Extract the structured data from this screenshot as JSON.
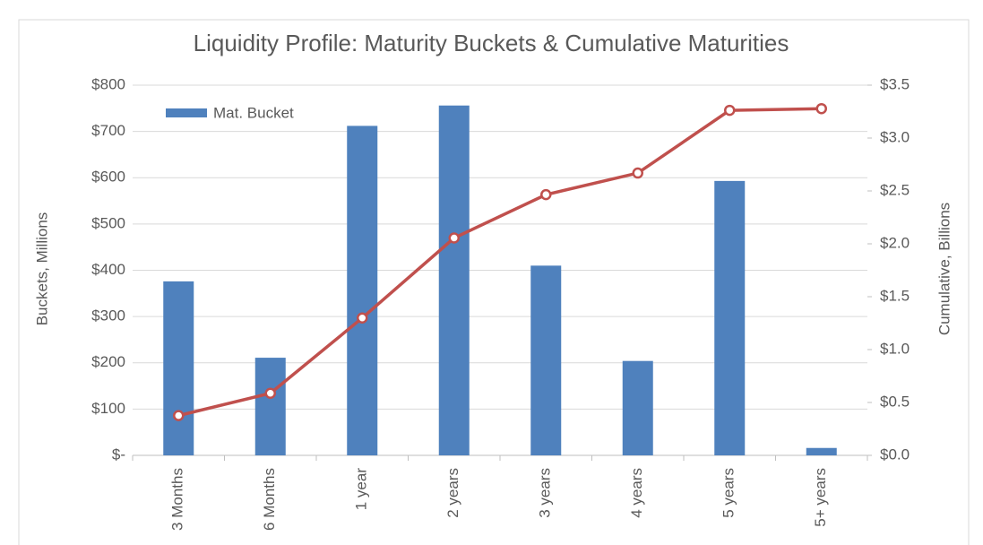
{
  "chart_data": {
    "type": "bar-line",
    "title": "Liquidity Profile: Maturity Buckets & Cumulative Maturities",
    "ylabel": "Buckets, Millions",
    "y2label": "Cumulative, Billions",
    "categories": [
      "3 Months",
      "6 Months",
      "1 year",
      "2 years",
      "3 years",
      "4 years",
      "5 years",
      "5+ years"
    ],
    "series": [
      {
        "name": "Mat. Bucket",
        "type": "bar",
        "color": "#4f81bd",
        "values": [
          376,
          211,
          712,
          756,
          410,
          204,
          593,
          16
        ]
      },
      {
        "type": "line",
        "axis": "y2",
        "color": "#c0504d",
        "values": [
          0.376,
          0.587,
          1.299,
          2.055,
          2.465,
          2.669,
          3.262,
          3.278
        ]
      }
    ],
    "ylim": [
      0,
      800
    ],
    "yticks": [
      {
        "value": 0,
        "label": "$-"
      },
      {
        "value": 100,
        "label": "$100"
      },
      {
        "value": 200,
        "label": "$200"
      },
      {
        "value": 300,
        "label": "$300"
      },
      {
        "value": 400,
        "label": "$400"
      },
      {
        "value": 500,
        "label": "$500"
      },
      {
        "value": 600,
        "label": "$600"
      },
      {
        "value": 700,
        "label": "$700"
      },
      {
        "value": 800,
        "label": "$800"
      }
    ],
    "y2lim": [
      0,
      3.5
    ],
    "y2ticks": [
      {
        "value": 0,
        "label": "$0.0"
      },
      {
        "value": 0.5,
        "label": "$0.5"
      },
      {
        "value": 1,
        "label": "$1.0"
      },
      {
        "value": 1.5,
        "label": "$1.5"
      },
      {
        "value": 2,
        "label": "$2.0"
      },
      {
        "value": 2.5,
        "label": "$2.5"
      },
      {
        "value": 3,
        "label": "$3.0"
      },
      {
        "value": 3.5,
        "label": "$3.5"
      }
    ],
    "grid": true,
    "legend": "top-left"
  }
}
